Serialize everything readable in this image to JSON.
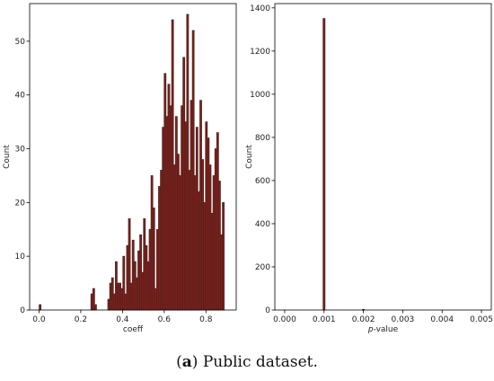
{
  "caption": {
    "letter": "a",
    "text": "Public dataset."
  },
  "chart_data": [
    {
      "type": "bar",
      "subtype": "histogram",
      "xlabel": "coeff",
      "ylabel": "Count",
      "xlim": [
        -0.045,
        0.945
      ],
      "ylim": [
        0,
        57
      ],
      "xticks": [
        "0.0",
        "0.2",
        "0.4",
        "0.6",
        "0.8"
      ],
      "yticks": [
        "0",
        "10",
        "20",
        "30",
        "40",
        "50"
      ],
      "bar_color": "#8b1a1a",
      "edge_color": "#3a2a1f",
      "bin_width": 0.009,
      "x": [
        0.005,
        0.253,
        0.262,
        0.271,
        0.334,
        0.343,
        0.352,
        0.361,
        0.37,
        0.379,
        0.388,
        0.397,
        0.406,
        0.415,
        0.424,
        0.433,
        0.442,
        0.451,
        0.46,
        0.469,
        0.478,
        0.487,
        0.496,
        0.505,
        0.514,
        0.523,
        0.532,
        0.541,
        0.55,
        0.559,
        0.568,
        0.577,
        0.586,
        0.595,
        0.604,
        0.613,
        0.622,
        0.631,
        0.64,
        0.649,
        0.658,
        0.667,
        0.676,
        0.685,
        0.694,
        0.703,
        0.712,
        0.721,
        0.73,
        0.739,
        0.748,
        0.757,
        0.766,
        0.775,
        0.784,
        0.793,
        0.802,
        0.811,
        0.82,
        0.829,
        0.838,
        0.847,
        0.856,
        0.865,
        0.874,
        0.883
      ],
      "values": [
        1,
        3,
        4,
        1,
        2,
        5,
        6,
        3,
        9,
        5,
        5,
        4,
        10,
        3,
        12,
        17,
        5,
        13,
        9,
        6,
        11,
        14,
        7,
        17,
        12,
        9,
        15,
        25,
        19,
        4,
        15,
        23,
        26,
        34,
        44,
        36,
        42,
        38,
        54,
        27,
        36,
        29,
        25,
        38,
        47,
        35,
        55,
        26,
        39,
        52,
        25,
        34,
        22,
        39,
        28,
        20,
        35,
        32,
        27,
        18,
        25,
        30,
        33,
        24,
        14,
        20
      ]
    },
    {
      "type": "bar",
      "subtype": "histogram",
      "xlabel": "p-value",
      "ylabel": "Count",
      "xlim": [
        -0.00025,
        0.00525
      ],
      "ylim": [
        0,
        1420
      ],
      "xticks": [
        "0.000",
        "0.001",
        "0.002",
        "0.003",
        "0.004",
        "0.005"
      ],
      "yticks": [
        "0",
        "200",
        "400",
        "600",
        "800",
        "1000",
        "1200",
        "1400"
      ],
      "bar_color": "#8b1a1a",
      "edge_color": "#3a2a1f",
      "bin_width": 5e-05,
      "x": [
        0.001,
        0.002
      ],
      "values": [
        1351,
        3
      ]
    }
  ]
}
